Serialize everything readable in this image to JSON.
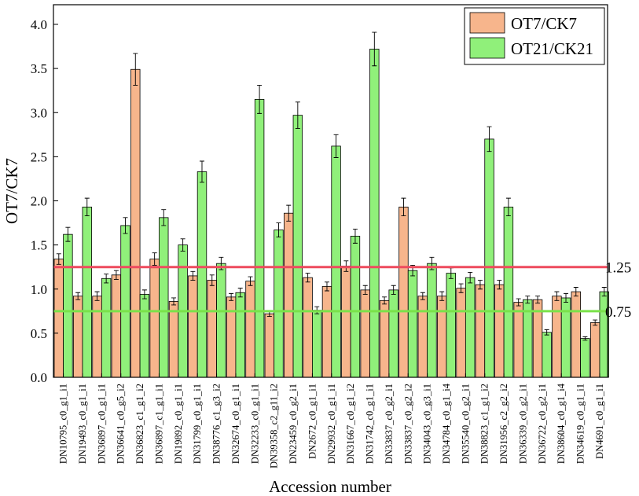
{
  "chart_data": {
    "type": "bar",
    "xlabel": "Accession number",
    "ylabel": "OT7/CK7",
    "ylim": [
      0,
      4.2
    ],
    "yticks": [
      "0.0",
      "0.5",
      "1.0",
      "1.5",
      "2.0",
      "2.5",
      "3.0",
      "3.5",
      "4.0"
    ],
    "categories": [
      "DN10795_c0_g1_i1",
      "DN19493_c0_g1_i1",
      "DN36897_c0_g1_i1",
      "DN36641_c0_g5_i2",
      "DN36823_c1_g1_i2",
      "DN36897_c1_g1_i1",
      "DN19892_c0_g1_i1",
      "DN31799_c0_g1_i1",
      "DN38776_c1_g3_i2",
      "DN32674_c0_g1_i1",
      "DN32233_c0_g1_i1",
      "DN39358_c2_g11_i2",
      "DN23459_c0_g2_i1",
      "DN2672_c0_g1_i1",
      "DN29932_c0_g1_i1",
      "DN31667_c0_g1_i2",
      "DN31742_c0_g1_i1",
      "DN33837_c0_g2_i1",
      "DN33837_c0_g2_i2",
      "DN34043_c0_g3_i1",
      "DN34784_c0_g1_i4",
      "DN35540_c0_g2_i1",
      "DN38823_c1_g1_i2",
      "DN31956_c2_g2_i2",
      "DN36339_c0_g2_i1",
      "DN36722_c0_g2_i1",
      "DN38604_c0_g1_i4",
      "DN34619_c0_g1_i1",
      "DN4691_c0_g1_i1"
    ],
    "series": [
      {
        "name": "OT7/CK7",
        "color": "#f7b58c",
        "values": [
          1.34,
          0.92,
          0.92,
          1.16,
          3.49,
          1.34,
          0.86,
          1.15,
          1.1,
          0.91,
          1.09,
          0.72,
          1.86,
          1.13,
          1.03,
          1.26,
          0.99,
          0.87,
          1.93,
          0.92,
          0.92,
          1.01,
          1.05,
          1.05,
          0.85,
          0.88,
          0.92,
          0.97,
          0.62
        ],
        "errors": [
          0.06,
          0.04,
          0.05,
          0.05,
          0.18,
          0.07,
          0.04,
          0.05,
          0.06,
          0.04,
          0.05,
          0.03,
          0.09,
          0.05,
          0.05,
          0.06,
          0.05,
          0.04,
          0.1,
          0.04,
          0.05,
          0.05,
          0.05,
          0.05,
          0.04,
          0.04,
          0.05,
          0.05,
          0.03
        ]
      },
      {
        "name": "OT21/CK21",
        "color": "#90f07a",
        "values": [
          1.62,
          1.93,
          1.12,
          1.72,
          0.94,
          1.81,
          1.5,
          2.33,
          1.29,
          0.96,
          3.15,
          1.67,
          2.97,
          0.76,
          2.62,
          1.6,
          3.72,
          0.99,
          1.21,
          1.29,
          1.18,
          1.13,
          2.7,
          1.93,
          0.88,
          0.51,
          0.9,
          0.44,
          0.97
        ],
        "errors": [
          0.08,
          0.1,
          0.05,
          0.09,
          0.05,
          0.09,
          0.07,
          0.12,
          0.07,
          0.05,
          0.16,
          0.08,
          0.15,
          0.04,
          0.13,
          0.08,
          0.19,
          0.05,
          0.06,
          0.07,
          0.06,
          0.06,
          0.14,
          0.1,
          0.04,
          0.03,
          0.05,
          0.02,
          0.05
        ]
      }
    ],
    "reference_lines": [
      {
        "value": 1.25,
        "label": "1.25",
        "color": "#ee4b5e"
      },
      {
        "value": 0.75,
        "label": "0.75",
        "color": "#7ae24a"
      }
    ],
    "legend": {
      "position": "top-right"
    },
    "grid": false
  }
}
